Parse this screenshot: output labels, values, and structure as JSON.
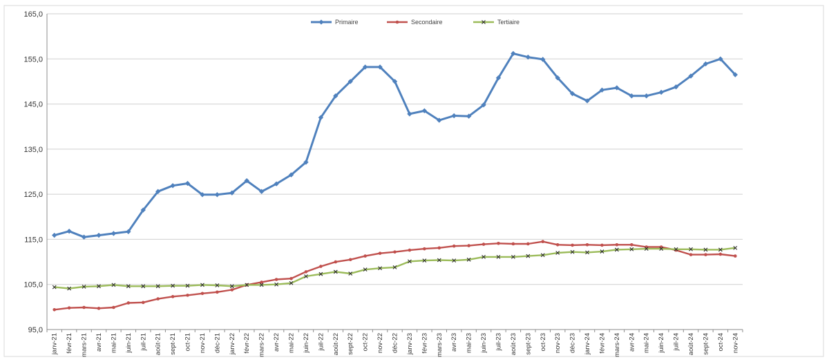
{
  "chart_data": {
    "type": "line",
    "title": "",
    "xlabel": "",
    "ylabel": "",
    "ylim": [
      95,
      165
    ],
    "yticks": [
      "95,0",
      "105,0",
      "115,0",
      "125,0",
      "135,0",
      "145,0",
      "155,0",
      "165,0"
    ],
    "ytick_values": [
      95,
      105,
      115,
      125,
      135,
      145,
      155,
      165
    ],
    "grid": "horizontal",
    "legend": "top-center",
    "categories": [
      "janv-21",
      "févr-21",
      "mars-21",
      "avr-21",
      "mai-21",
      "juin-21",
      "juil-21",
      "août-21",
      "sept-21",
      "oct-21",
      "nov-21",
      "déc-21",
      "janv-22",
      "févr-22",
      "mars-22",
      "avr-22",
      "mai-22",
      "juin-22",
      "juil-22",
      "août-22",
      "sept-22",
      "oct-22",
      "nov-22",
      "déc-22",
      "janv-23",
      "févr-23",
      "mars-23",
      "avr-23",
      "mai-23",
      "juin-23",
      "juil-23",
      "août-23",
      "sept-23",
      "oct-23",
      "nov-23",
      "déc-23",
      "janv-24",
      "févr-24",
      "mars-24",
      "avr-24",
      "mai-24",
      "juin-24",
      "juil-24",
      "août-24",
      "sept-24",
      "oct-24",
      "nov-24"
    ],
    "series": [
      {
        "name": "Primaire",
        "color": "#4F81BD",
        "values": [
          115.9,
          116.8,
          115.5,
          115.9,
          116.3,
          116.7,
          121.5,
          125.6,
          126.9,
          127.4,
          124.9,
          124.9,
          125.3,
          128.0,
          125.6,
          127.3,
          129.3,
          132.1,
          142.0,
          146.8,
          150.0,
          153.2,
          153.2,
          150.0,
          142.8,
          143.5,
          141.4,
          142.4,
          142.3,
          144.8,
          150.8,
          156.2,
          155.4,
          154.9,
          150.8,
          147.3,
          145.7,
          148.1,
          148.6,
          146.8,
          146.8,
          147.6,
          148.8,
          151.2,
          153.9,
          155.0,
          151.5
        ]
      },
      {
        "name": "Secondaire",
        "color": "#C0504D",
        "values": [
          99.4,
          99.8,
          99.9,
          99.7,
          99.9,
          100.9,
          101.0,
          101.8,
          102.3,
          102.6,
          103.0,
          103.3,
          103.8,
          104.9,
          105.5,
          106.1,
          106.3,
          107.8,
          109.0,
          110.0,
          110.5,
          111.3,
          111.9,
          112.2,
          112.6,
          112.9,
          113.1,
          113.5,
          113.6,
          113.9,
          114.1,
          114.0,
          114.0,
          114.5,
          113.8,
          113.7,
          113.8,
          113.7,
          113.8,
          113.8,
          113.3,
          113.3,
          112.6,
          111.6,
          111.6,
          111.7,
          111.3
        ]
      },
      {
        "name": "Tertiaire",
        "color": "#9BBB59",
        "values": [
          104.4,
          104.1,
          104.5,
          104.6,
          104.9,
          104.6,
          104.6,
          104.6,
          104.7,
          104.7,
          104.9,
          104.8,
          104.6,
          104.9,
          104.9,
          105.0,
          105.3,
          106.8,
          107.3,
          107.8,
          107.4,
          108.3,
          108.6,
          108.8,
          110.1,
          110.3,
          110.4,
          110.3,
          110.5,
          111.1,
          111.1,
          111.1,
          111.3,
          111.5,
          112.0,
          112.2,
          112.1,
          112.3,
          112.7,
          112.8,
          112.9,
          112.9,
          112.8,
          112.8,
          112.7,
          112.7,
          113.1
        ]
      }
    ]
  },
  "icons": {
    "legend_marker_primaire": "diamond-marker",
    "legend_marker_secondaire": "circle-marker",
    "legend_marker_tertiaire": "cross-marker"
  }
}
